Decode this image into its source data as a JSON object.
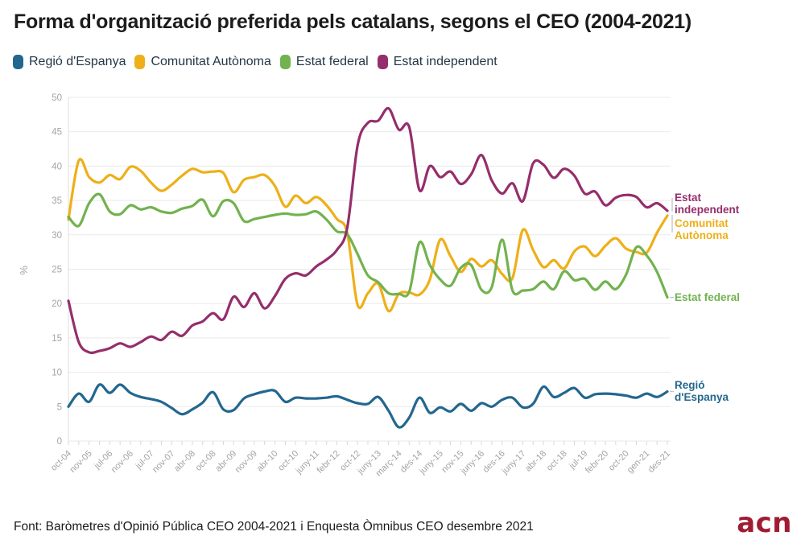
{
  "title": "Forma d'organització preferida pels catalans, segons el CEO (2004-2021)",
  "footer": {
    "source": "Font: Baròmetres d'Opinió Pública CEO 2004-2021 i Enquesta Òmnibus CEO desembre 2021",
    "logo_text": "acn",
    "logo_color": "#a01c32"
  },
  "colors": {
    "grid": "#e9e9e9",
    "axis_line": "#dedede",
    "tick": "#d8d8d8",
    "axis_text": "#a3a3a3",
    "bracket": "#c4c4c4",
    "legend_text": "#253746",
    "title_text": "#1c1c1c"
  },
  "chart_data": {
    "type": "line",
    "title": "Forma d'organització preferida pels catalans, segons el CEO (2004-2021)",
    "xlabel": "",
    "ylabel": "%",
    "ylim": [
      0,
      50
    ],
    "yticks": [
      0,
      5,
      10,
      15,
      20,
      25,
      30,
      35,
      40,
      45,
      50
    ],
    "grid": true,
    "legend_position": "top",
    "n_points": 59,
    "x_label_every": 2,
    "x_labels": [
      "oct-04",
      "nov-05",
      "jul-06",
      "nov-06",
      "jul-07",
      "nov-07",
      "abr-08",
      "oct-08",
      "abr-09",
      "nov-09",
      "abr-10",
      "oct-10",
      "juny-11",
      "febr-12",
      "oct-12",
      "juny-13",
      "març-14",
      "des-14",
      "juny-15",
      "nov-15",
      "juny-16",
      "des-16",
      "juny-17",
      "abr-18",
      "oct-18",
      "jul-19",
      "febr-20",
      "oct-20",
      "gen-21",
      "des-21"
    ],
    "series": [
      {
        "name": "Regió d'Espanya",
        "color": "#23678f",
        "end_label": [
          "Regió",
          "d'Espanya"
        ],
        "values": [
          5.0,
          6.9,
          5.7,
          8.2,
          7.0,
          8.2,
          7.0,
          6.4,
          6.1,
          5.7,
          4.8,
          3.9,
          4.6,
          5.6,
          7.1,
          4.6,
          4.5,
          6.2,
          6.8,
          7.2,
          7.3,
          5.7,
          6.3,
          6.2,
          6.2,
          6.3,
          6.5,
          6.0,
          5.5,
          5.4,
          6.4,
          4.4,
          2.0,
          3.4,
          6.3,
          4.1,
          4.9,
          4.3,
          5.4,
          4.4,
          5.5,
          5.0,
          6.0,
          6.3,
          4.9,
          5.4,
          7.9,
          6.4,
          7.0,
          7.7,
          6.3,
          6.8,
          6.9,
          6.8,
          6.6,
          6.3,
          6.9,
          6.4,
          7.2
        ]
      },
      {
        "name": "Comunitat Autònoma",
        "color": "#eeaf18",
        "end_label": [
          "Comunitat",
          "Autònoma"
        ],
        "values": [
          32.2,
          40.8,
          38.4,
          37.6,
          38.7,
          38.1,
          39.9,
          39.3,
          37.6,
          36.4,
          37.3,
          38.6,
          39.6,
          39.1,
          39.2,
          39.0,
          36.2,
          38.0,
          38.4,
          38.7,
          37.1,
          34.1,
          35.7,
          34.6,
          35.5,
          34.3,
          32.3,
          30.3,
          19.8,
          21.5,
          22.9,
          18.9,
          21.4,
          21.6,
          21.3,
          23.5,
          29.3,
          26.9,
          24.6,
          26.5,
          25.4,
          26.3,
          24.3,
          23.7,
          30.7,
          27.8,
          25.3,
          26.3,
          25.1,
          27.6,
          28.3,
          26.9,
          28.4,
          29.5,
          28.0,
          27.5,
          27.4,
          30.3,
          32.8
        ]
      },
      {
        "name": "Estat federal",
        "color": "#72b24f",
        "end_label": [
          "Estat federal"
        ],
        "values": [
          32.6,
          31.3,
          34.6,
          35.9,
          33.4,
          33.0,
          34.3,
          33.7,
          34.0,
          33.4,
          33.2,
          33.8,
          34.2,
          35.1,
          32.7,
          34.9,
          34.6,
          32.0,
          32.3,
          32.6,
          32.9,
          33.1,
          32.9,
          33.0,
          33.4,
          32.2,
          30.5,
          30.1,
          27.2,
          24.1,
          23.1,
          21.5,
          21.4,
          21.7,
          28.9,
          25.6,
          23.5,
          22.6,
          25.2,
          25.6,
          22.0,
          22.4,
          29.3,
          21.9,
          21.9,
          22.1,
          23.2,
          22.1,
          24.7,
          23.4,
          23.6,
          22.0,
          23.2,
          22.1,
          24.2,
          28.2,
          27.0,
          24.6,
          20.9
        ]
      },
      {
        "name": "Estat independent",
        "color": "#952e6c",
        "end_label": [
          "Estat",
          "independent"
        ],
        "values": [
          20.4,
          14.4,
          12.9,
          13.1,
          13.5,
          14.2,
          13.7,
          14.4,
          15.2,
          14.7,
          15.9,
          15.3,
          16.8,
          17.4,
          18.6,
          17.7,
          21.0,
          19.5,
          21.5,
          19.3,
          21.1,
          23.6,
          24.4,
          24.1,
          25.4,
          26.4,
          27.8,
          31.0,
          43.0,
          46.3,
          46.6,
          48.4,
          45.3,
          45.7,
          36.5,
          40.0,
          38.4,
          39.2,
          37.4,
          38.8,
          41.6,
          37.9,
          36.0,
          37.5,
          34.9,
          40.4,
          40.2,
          38.3,
          39.6,
          38.6,
          36.0,
          36.3,
          34.3,
          35.4,
          35.8,
          35.5,
          34.0,
          34.6,
          33.5
        ]
      }
    ]
  },
  "legend": [
    {
      "label": "Regió d'Espanya",
      "color": "#23678f"
    },
    {
      "label": "Comunitat Autònoma",
      "color": "#eeaf18"
    },
    {
      "label": "Estat federal",
      "color": "#72b24f"
    },
    {
      "label": "Estat independent",
      "color": "#952e6c"
    }
  ]
}
